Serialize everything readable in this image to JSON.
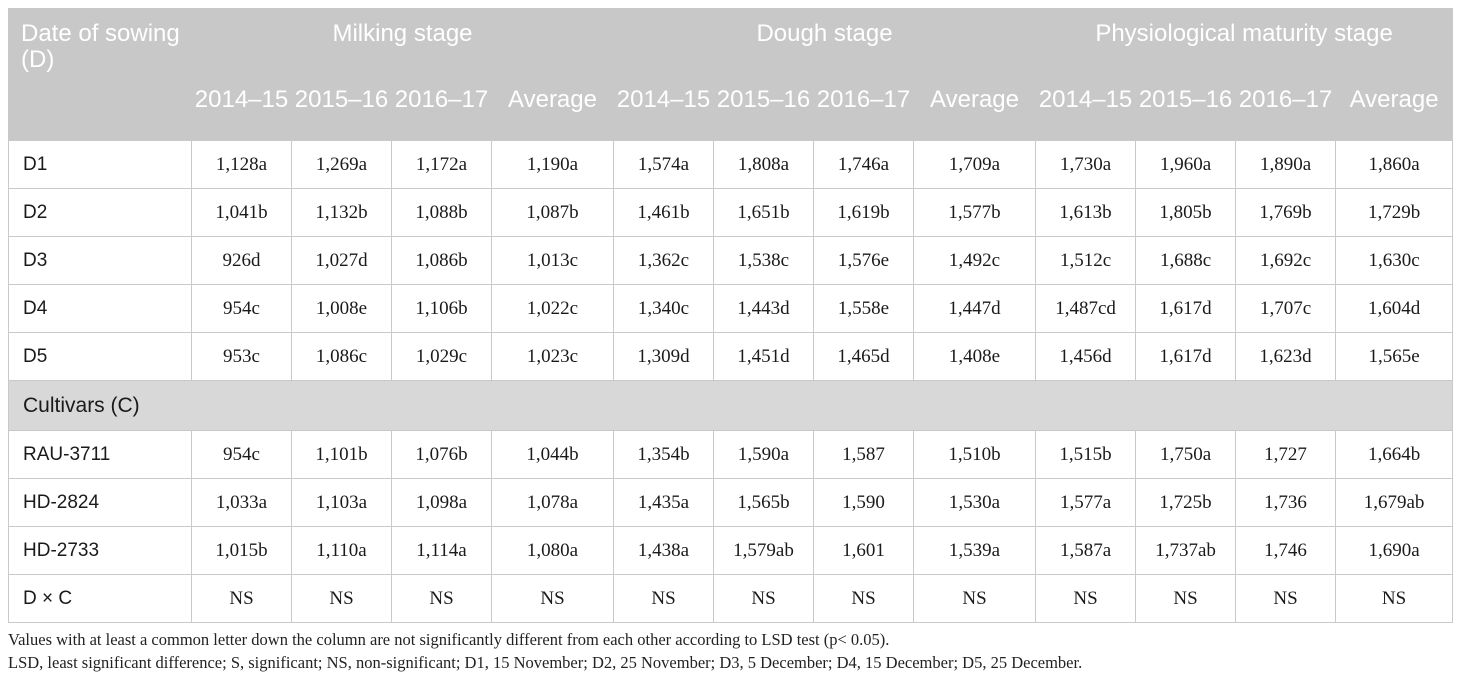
{
  "header": {
    "corner": "Date of sowing (D)",
    "groups": [
      "Milking stage",
      "Dough stage",
      "Physiological maturity stage"
    ],
    "subcolumns": [
      "2014–15",
      "2015–16",
      "2016–17",
      "Average"
    ]
  },
  "rows_dates": [
    {
      "label": "D1",
      "values": [
        "1,128a",
        "1,269a",
        "1,172a",
        "1,190a",
        "1,574a",
        "1,808a",
        "1,746a",
        "1,709a",
        "1,730a",
        "1,960a",
        "1,890a",
        "1,860a"
      ]
    },
    {
      "label": "D2",
      "values": [
        "1,041b",
        "1,132b",
        "1,088b",
        "1,087b",
        "1,461b",
        "1,651b",
        "1,619b",
        "1,577b",
        "1,613b",
        "1,805b",
        "1,769b",
        "1,729b"
      ]
    },
    {
      "label": "D3",
      "values": [
        "926d",
        "1,027d",
        "1,086b",
        "1,013c",
        "1,362c",
        "1,538c",
        "1,576e",
        "1,492c",
        "1,512c",
        "1,688c",
        "1,692c",
        "1,630c"
      ]
    },
    {
      "label": "D4",
      "values": [
        "954c",
        "1,008e",
        "1,106b",
        "1,022c",
        "1,340c",
        "1,443d",
        "1,558e",
        "1,447d",
        "1,487cd",
        "1,617d",
        "1,707c",
        "1,604d"
      ]
    },
    {
      "label": "D5",
      "values": [
        "953c",
        "1,086c",
        "1,029c",
        "1,023c",
        "1,309d",
        "1,451d",
        "1,465d",
        "1,408e",
        "1,456d",
        "1,617d",
        "1,623d",
        "1,565e"
      ]
    }
  ],
  "section_label": "Cultivars (C)",
  "rows_cultivars": [
    {
      "label": "RAU-3711",
      "values": [
        "954c",
        "1,101b",
        "1,076b",
        "1,044b",
        "1,354b",
        "1,590a",
        "1,587",
        "1,510b",
        "1,515b",
        "1,750a",
        "1,727",
        "1,664b"
      ]
    },
    {
      "label": "HD-2824",
      "values": [
        "1,033a",
        "1,103a",
        "1,098a",
        "1,078a",
        "1,435a",
        "1,565b",
        "1,590",
        "1,530a",
        "1,577a",
        "1,725b",
        "1,736",
        "1,679ab"
      ]
    },
    {
      "label": "HD-2733",
      "values": [
        "1,015b",
        "1,110a",
        "1,114a",
        "1,080a",
        "1,438a",
        "1,579ab",
        "1,601",
        "1,539a",
        "1,587a",
        "1,737ab",
        "1,746",
        "1,690a"
      ]
    },
    {
      "label": "D × C",
      "values": [
        "NS",
        "NS",
        "NS",
        "NS",
        "NS",
        "NS",
        "NS",
        "NS",
        "NS",
        "NS",
        "NS",
        "NS"
      ]
    }
  ],
  "notes": [
    "Values with at least a common letter down the column are not significantly different from each other according to LSD test (p< 0.05).",
    "LSD, least significant difference; S, significant; NS, non-significant; D1, 15 November; D2, 25 November; D3, 5 December; D4, 15 December; D5, 25 December."
  ]
}
